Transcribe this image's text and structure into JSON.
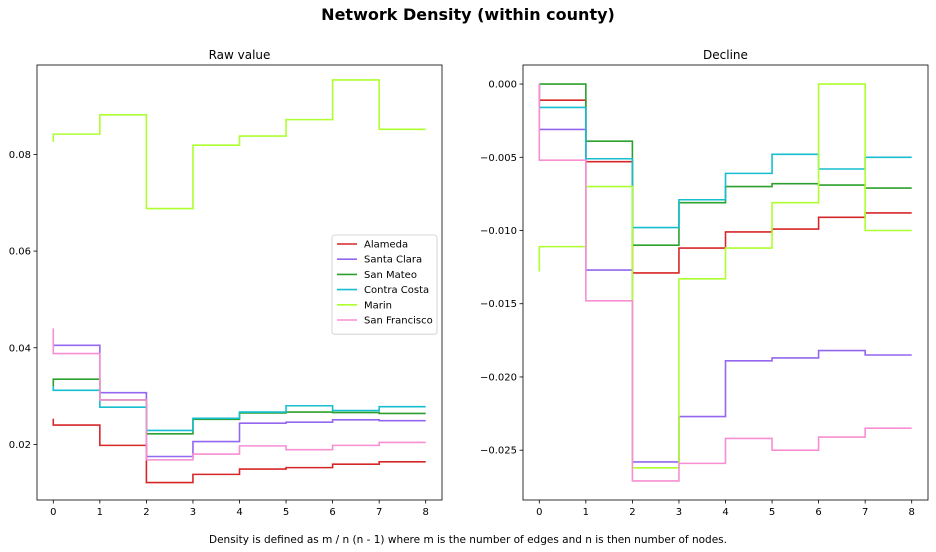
{
  "figure": {
    "title": "Network Density (within county)",
    "caption": "Density is defined as m / n (n - 1) where m is the number of edges and n is then number of nodes."
  },
  "colors": {
    "Alameda": "#d62728",
    "Santa Clara": "#9467f0",
    "San Mateo": "#2ca02c",
    "Contra Costa": "#17becf",
    "Marin": "#adff2f",
    "San Francisco": "#f78fd2"
  },
  "chart_data": [
    {
      "type": "line",
      "step": "post",
      "title": "Raw value",
      "xlabel": "",
      "ylabel": "",
      "xlim": [
        -0.35,
        8.35
      ],
      "ylim": [
        0.0085,
        0.0985
      ],
      "x": [
        0,
        1,
        2,
        3,
        4,
        5,
        6,
        7,
        8
      ],
      "xticks": [
        "0",
        "1",
        "2",
        "3",
        "4",
        "5",
        "6",
        "7",
        "8"
      ],
      "yticks": [
        0.02,
        0.04,
        0.06,
        0.08
      ],
      "ytick_labels": [
        "0.02",
        "0.04",
        "0.06",
        "0.08"
      ],
      "legend": "center-right",
      "series": [
        {
          "name": "Alameda",
          "start": 0.0253,
          "values": [
            0.024,
            0.0198,
            0.0121,
            0.0138,
            0.0149,
            0.0152,
            0.0159,
            0.0164,
            0.0164
          ]
        },
        {
          "name": "Santa Clara",
          "start": 0.0405,
          "values": [
            0.0405,
            0.0307,
            0.0175,
            0.0206,
            0.0244,
            0.0246,
            0.0251,
            0.0249,
            0.0249
          ]
        },
        {
          "name": "San Mateo",
          "start": 0.032,
          "values": [
            0.0335,
            0.0292,
            0.0222,
            0.0252,
            0.0265,
            0.0267,
            0.0266,
            0.0264,
            0.0264
          ]
        },
        {
          "name": "Contra Costa",
          "start": 0.032,
          "values": [
            0.0312,
            0.0277,
            0.0229,
            0.0254,
            0.0267,
            0.028,
            0.027,
            0.0278,
            0.0278
          ]
        },
        {
          "name": "Marin",
          "start": 0.0826,
          "values": [
            0.0842,
            0.0882,
            0.0688,
            0.0819,
            0.0838,
            0.0872,
            0.0954,
            0.0852,
            0.0852
          ]
        },
        {
          "name": "San Francisco",
          "start": 0.044,
          "values": [
            0.0388,
            0.0292,
            0.0168,
            0.018,
            0.0197,
            0.0189,
            0.0198,
            0.0204,
            0.0204
          ]
        }
      ]
    },
    {
      "type": "line",
      "step": "post",
      "title": "Decline",
      "xlabel": "",
      "ylabel": "",
      "xlim": [
        -0.35,
        8.35
      ],
      "ylim": [
        -0.0284,
        0.0013
      ],
      "x": [
        0,
        1,
        2,
        3,
        4,
        5,
        6,
        7,
        8
      ],
      "xticks": [
        "0",
        "1",
        "2",
        "3",
        "4",
        "5",
        "6",
        "7",
        "8"
      ],
      "yticks": [
        0.0,
        -0.005,
        -0.01,
        -0.015,
        -0.02,
        -0.025
      ],
      "ytick_labels": [
        "0.000",
        "−0.005",
        "−0.010",
        "−0.015",
        "−0.020",
        "−0.025"
      ],
      "series": [
        {
          "name": "Alameda",
          "start": 0.0,
          "values": [
            -0.0011,
            -0.0053,
            -0.0129,
            -0.0112,
            -0.0101,
            -0.0099,
            -0.0091,
            -0.0088,
            -0.0088
          ]
        },
        {
          "name": "Santa Clara",
          "start": 0.0,
          "values": [
            -0.0031,
            -0.0127,
            -0.0258,
            -0.0227,
            -0.0189,
            -0.0187,
            -0.0182,
            -0.0185,
            -0.0185
          ]
        },
        {
          "name": "San Mateo",
          "start": 0.0,
          "values": [
            0.0,
            -0.0039,
            -0.011,
            -0.0081,
            -0.007,
            -0.0068,
            -0.0069,
            -0.0071,
            -0.0071
          ]
        },
        {
          "name": "Contra Costa",
          "start": 0.0,
          "values": [
            -0.0016,
            -0.0051,
            -0.0098,
            -0.0079,
            -0.0061,
            -0.0048,
            -0.0058,
            -0.005,
            -0.005
          ]
        },
        {
          "name": "Marin",
          "start": -0.0128,
          "values": [
            -0.0111,
            -0.007,
            -0.0262,
            -0.0133,
            -0.0112,
            -0.0081,
            0.0,
            -0.01,
            -0.01
          ]
        },
        {
          "name": "San Francisco",
          "start": 0.0,
          "values": [
            -0.0052,
            -0.0148,
            -0.0271,
            -0.0259,
            -0.0242,
            -0.025,
            -0.0241,
            -0.0235,
            -0.0235
          ]
        }
      ]
    }
  ]
}
